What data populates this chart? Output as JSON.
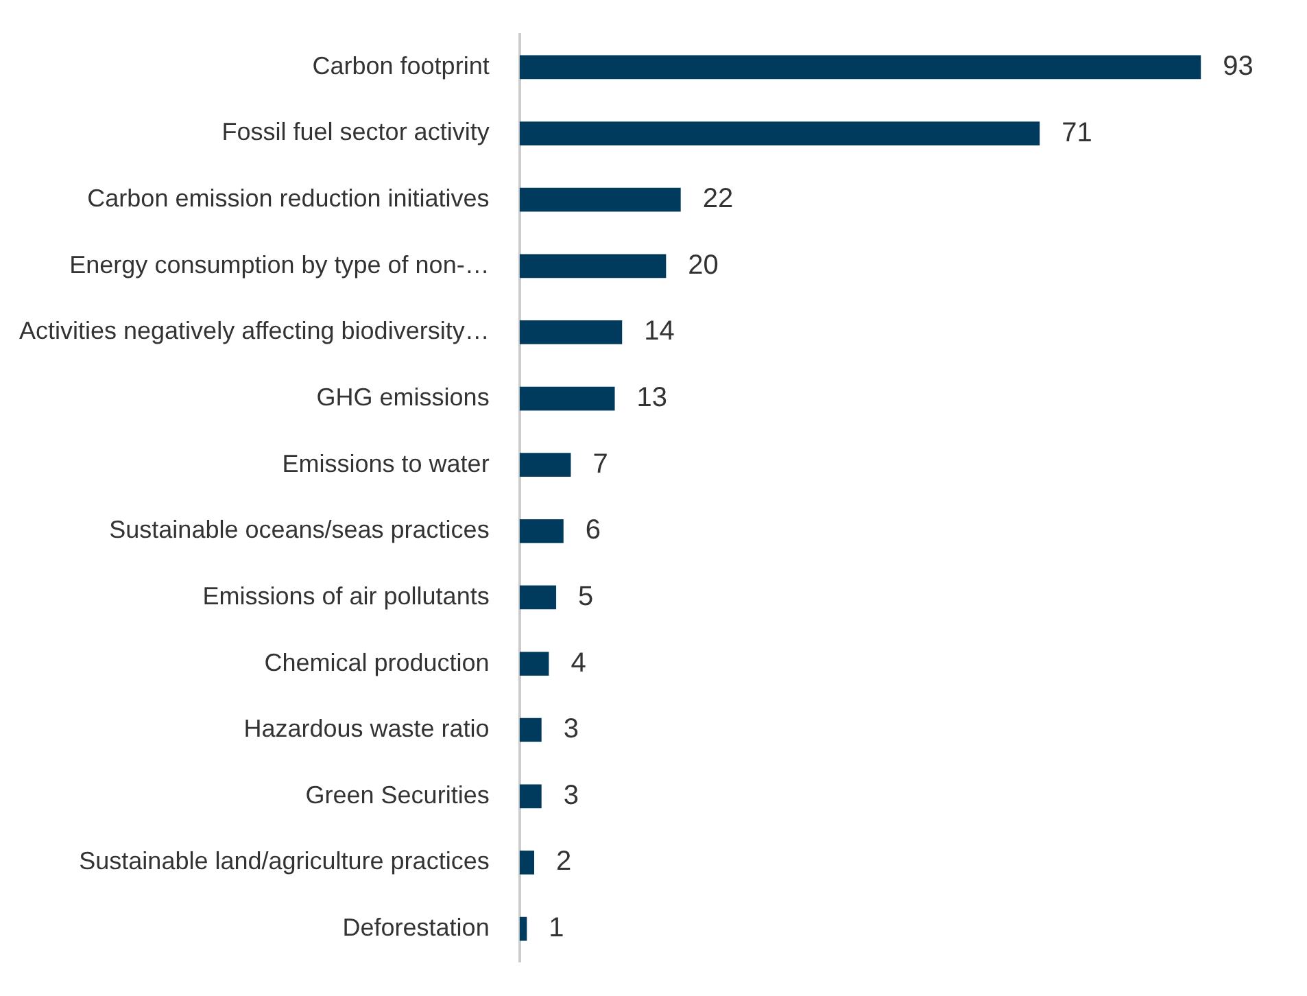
{
  "chart_data": {
    "type": "bar",
    "orientation": "horizontal",
    "categories": [
      "Carbon footprint",
      "Fossil fuel sector activity",
      "Carbon emission reduction initiatives",
      "Energy consumption by type of non-…",
      "Activities negatively affecting biodiversity…",
      "GHG emissions",
      "Emissions to water",
      "Sustainable oceans/seas practices",
      "Emissions of air pollutants",
      "Chemical production",
      "Hazardous waste ratio",
      "Green Securities",
      "Sustainable land/agriculture practices",
      "Deforestation"
    ],
    "values": [
      93,
      71,
      22,
      20,
      14,
      13,
      7,
      6,
      5,
      4,
      3,
      3,
      2,
      1
    ],
    "color": "#003a5c",
    "data_labels": true,
    "legend": false,
    "tick_labels": "y"
  }
}
